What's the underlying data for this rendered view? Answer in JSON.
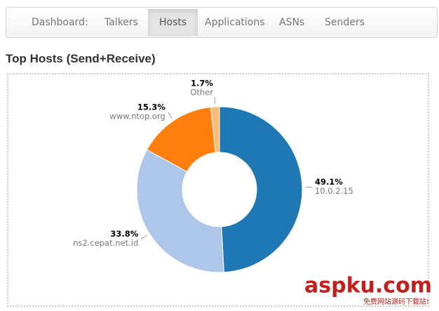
{
  "nav": {
    "tabs": [
      "Dashboard:",
      "Talkers",
      "Hosts",
      "Applications",
      "ASNs",
      "Senders"
    ],
    "active": 2
  },
  "heading": "Top Hosts (Send+Receive)",
  "chart_data": {
    "type": "pie",
    "categories": [
      "10.0.2.15",
      "ns2.cepat.net.id",
      "www.ntop.org",
      "Other"
    ],
    "values": [
      49.1,
      33.8,
      15.3,
      1.7
    ],
    "value_labels": [
      "49.1%",
      "33.8%",
      "15.3%",
      "1.7%"
    ],
    "colors": [
      "#1f77b4",
      "#aec7e8",
      "#ff7f0e",
      "#ffbb78"
    ],
    "donut": true
  },
  "watermark": {
    "brand": "aspku.com",
    "tagline": "免费网站源码下载站!"
  }
}
